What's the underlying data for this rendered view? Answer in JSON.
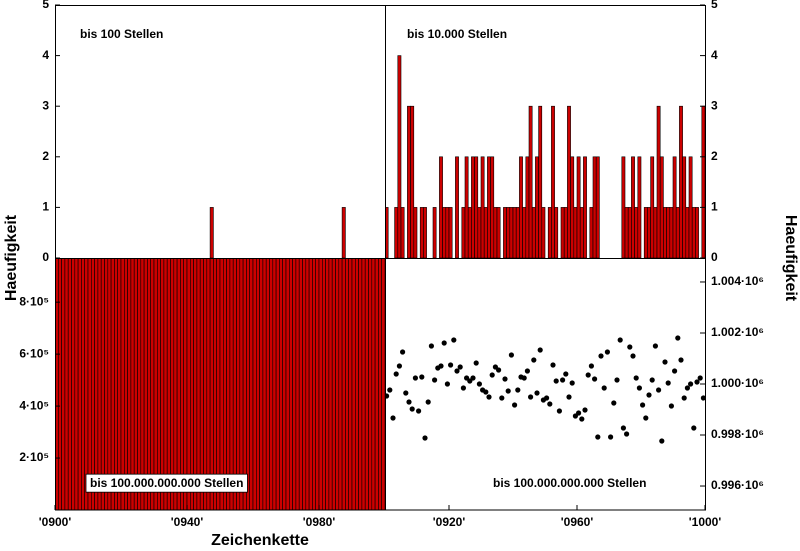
{
  "chart_data": [
    {
      "type": "bar",
      "title": "bis 100 Stellen",
      "color": "#cc0000",
      "y_axis": "left",
      "x": [
        900,
        901,
        902,
        903,
        904,
        905,
        906,
        907,
        908,
        909,
        910,
        911,
        912,
        913,
        914,
        915,
        916,
        917,
        918,
        919,
        920,
        921,
        922,
        923,
        924,
        925,
        926,
        927,
        928,
        929,
        930,
        931,
        932,
        933,
        934,
        935,
        936,
        937,
        938,
        939,
        940,
        941,
        942,
        943,
        944,
        945,
        946,
        947,
        948,
        949,
        950,
        951,
        952,
        953,
        954,
        955,
        956,
        957,
        958,
        959,
        960,
        961,
        962,
        963,
        964,
        965,
        966,
        967,
        968,
        969,
        970,
        971,
        972,
        973,
        974,
        975,
        976,
        977,
        978,
        979,
        980,
        981,
        982,
        983,
        984,
        985,
        986,
        987,
        988,
        989,
        990,
        991,
        992,
        993,
        994,
        995,
        996,
        997,
        998,
        999
      ],
      "values": [
        0,
        0,
        0,
        0,
        0,
        0,
        0,
        0,
        0,
        0,
        0,
        0,
        0,
        0,
        0,
        0,
        0,
        0,
        0,
        0,
        0,
        0,
        0,
        0,
        0,
        0,
        0,
        0,
        0,
        0,
        0,
        0,
        0,
        0,
        0,
        0,
        0,
        0,
        0,
        0,
        0,
        0,
        0,
        0,
        0,
        0,
        0,
        1,
        0,
        0,
        0,
        0,
        0,
        0,
        0,
        0,
        0,
        0,
        0,
        0,
        0,
        0,
        0,
        0,
        0,
        0,
        0,
        0,
        0,
        0,
        0,
        0,
        0,
        0,
        0,
        0,
        0,
        0,
        0,
        0,
        0,
        0,
        0,
        0,
        0,
        0,
        0,
        1,
        0,
        0,
        0,
        0,
        0,
        0,
        0,
        0,
        0,
        0,
        0,
        0
      ],
      "xlim": [
        900,
        1000
      ],
      "ylim": [
        0,
        5
      ],
      "yticks": [
        0,
        1,
        2,
        3,
        4,
        5
      ],
      "ylabel": "Haeufigkeit"
    },
    {
      "type": "bar",
      "title": "bis 10.000 Stellen",
      "color": "#cc0000",
      "y_axis": "right",
      "x": [
        900,
        901,
        902,
        903,
        904,
        905,
        906,
        907,
        908,
        909,
        910,
        911,
        912,
        913,
        914,
        915,
        916,
        917,
        918,
        919,
        920,
        921,
        922,
        923,
        924,
        925,
        926,
        927,
        928,
        929,
        930,
        931,
        932,
        933,
        934,
        935,
        936,
        937,
        938,
        939,
        940,
        941,
        942,
        943,
        944,
        945,
        946,
        947,
        948,
        949,
        950,
        951,
        952,
        953,
        954,
        955,
        956,
        957,
        958,
        959,
        960,
        961,
        962,
        963,
        964,
        965,
        966,
        967,
        968,
        969,
        970,
        971,
        972,
        973,
        974,
        975,
        976,
        977,
        978,
        979,
        980,
        981,
        982,
        983,
        984,
        985,
        986,
        987,
        988,
        989,
        990,
        991,
        992,
        993,
        994,
        995,
        996,
        997,
        998,
        999
      ],
      "values": [
        1,
        0,
        0,
        1,
        4,
        1,
        0,
        3,
        3,
        1,
        0,
        1,
        1,
        0,
        0,
        1,
        0,
        2,
        1,
        1,
        1,
        0,
        2,
        0,
        1,
        2,
        1,
        2,
        2,
        1,
        2,
        1,
        2,
        2,
        1,
        1,
        0,
        1,
        1,
        1,
        1,
        1,
        2,
        1,
        2,
        3,
        1,
        2,
        3,
        1,
        0,
        1,
        3,
        1,
        0,
        1,
        1,
        3,
        2,
        1,
        2,
        1,
        2,
        0,
        1,
        2,
        2,
        0,
        0,
        0,
        0,
        0,
        0,
        0,
        2,
        1,
        1,
        2,
        1,
        2,
        0,
        1,
        1,
        2,
        1,
        3,
        2,
        1,
        1,
        1,
        2,
        1,
        3,
        2,
        1,
        2,
        1,
        1,
        0,
        3
      ],
      "xlim": [
        900,
        1000
      ],
      "ylim": [
        0,
        5
      ],
      "yticks": [
        0,
        1,
        2,
        3,
        4,
        5
      ],
      "ylabel": "Haeufigkeit"
    },
    {
      "type": "bar",
      "title": "bis 100.000.000.000 Stellen",
      "color": "#cc0000",
      "y_axis": "left",
      "label_box": true,
      "x": [
        900,
        901,
        902,
        903,
        904,
        905,
        906,
        907,
        908,
        909,
        910,
        911,
        912,
        913,
        914,
        915,
        916,
        917,
        918,
        919,
        920,
        921,
        922,
        923,
        924,
        925,
        926,
        927,
        928,
        929,
        930,
        931,
        932,
        933,
        934,
        935,
        936,
        937,
        938,
        939,
        940,
        941,
        942,
        943,
        944,
        945,
        946,
        947,
        948,
        949,
        950,
        951,
        952,
        953,
        954,
        955,
        956,
        957,
        958,
        959,
        960,
        961,
        962,
        963,
        964,
        965,
        966,
        967,
        968,
        969,
        970,
        971,
        972,
        973,
        974,
        975,
        976,
        977,
        978,
        979,
        980,
        981,
        982,
        983,
        984,
        985,
        986,
        987,
        988,
        989,
        990,
        991,
        992,
        993,
        994,
        995,
        996,
        997,
        998,
        999
      ],
      "values": [
        999530,
        999765,
        998667,
        1000392,
        1000706,
        1001255,
        999647,
        999294,
        999020,
        1000235,
        998942,
        1000274,
        997883,
        999294,
        1001490,
        1000157,
        1000627,
        1000706,
        1001607,
        1000000,
        1000745,
        1001725,
        1000510,
        1000666,
        999843,
        1000235,
        1000118,
        1000235,
        1000823,
        1000000,
        999765,
        999686,
        999490,
        1000353,
        1000666,
        1000549,
        999451,
        1000196,
        999726,
        1001137,
        999177,
        999765,
        1000274,
        1000235,
        1000510,
        999490,
        1000941,
        999647,
        1001333,
        999373,
        999451,
        999216,
        1000745,
        1000118,
        998942,
        1000157,
        1000392,
        999490,
        1000039,
        998746,
        998863,
        998628,
        998981,
        1000353,
        1000706,
        1000196,
        997922,
        1001098,
        999843,
        1001255,
        997922,
        999255,
        1000157,
        1001725,
        998275,
        998040,
        1001450,
        1001098,
        1000235,
        999843,
        999177,
        998667,
        999569,
        1000157,
        1001490,
        999765,
        997766,
        1000862,
        1000039,
        999138,
        1000510,
        1001803,
        1000941,
        999451,
        999843,
        1000000,
        998275,
        1000078,
        1000235,
        999451
      ],
      "xlim": [
        900,
        1000
      ],
      "ylim": [
        0,
        970000
      ],
      "yticks": [
        {
          "value": 200000,
          "label": "2·10⁵"
        },
        {
          "value": 400000,
          "label": "4·10⁵"
        },
        {
          "value": 600000,
          "label": "6·10⁵"
        },
        {
          "value": 800000,
          "label": "8·10⁵"
        }
      ],
      "xticks": [
        {
          "value": 900,
          "label": "'0900'"
        },
        {
          "value": 940,
          "label": "'0940'"
        },
        {
          "value": 980,
          "label": "'0980'"
        }
      ],
      "xlabel": "Zeichenkette"
    },
    {
      "type": "scatter",
      "title": "bis 100.000.000.000 Stellen",
      "color": "#000000",
      "y_axis": "right",
      "x": [
        900,
        901,
        902,
        903,
        904,
        905,
        906,
        907,
        908,
        909,
        910,
        911,
        912,
        913,
        914,
        915,
        916,
        917,
        918,
        919,
        920,
        921,
        922,
        923,
        924,
        925,
        926,
        927,
        928,
        929,
        930,
        931,
        932,
        933,
        934,
        935,
        936,
        937,
        938,
        939,
        940,
        941,
        942,
        943,
        944,
        945,
        946,
        947,
        948,
        949,
        950,
        951,
        952,
        953,
        954,
        955,
        956,
        957,
        958,
        959,
        960,
        961,
        962,
        963,
        964,
        965,
        966,
        967,
        968,
        969,
        970,
        971,
        972,
        973,
        974,
        975,
        976,
        977,
        978,
        979,
        980,
        981,
        982,
        983,
        984,
        985,
        986,
        987,
        988,
        989,
        990,
        991,
        992,
        993,
        994,
        995,
        996,
        997,
        998,
        999
      ],
      "values": [
        999530,
        999765,
        998667,
        1000392,
        1000706,
        1001255,
        999647,
        999294,
        999020,
        1000235,
        998942,
        1000274,
        997883,
        999294,
        1001490,
        1000157,
        1000627,
        1000706,
        1001607,
        1000000,
        1000745,
        1001725,
        1000510,
        1000666,
        999843,
        1000235,
        1000118,
        1000235,
        1000823,
        1000000,
        999765,
        999686,
        999490,
        1000353,
        1000666,
        1000549,
        999451,
        1000196,
        999726,
        1001137,
        999177,
        999765,
        1000274,
        1000235,
        1000510,
        999490,
        1000941,
        999647,
        1001333,
        999373,
        999451,
        999216,
        1000745,
        1000118,
        998942,
        1000157,
        1000392,
        999490,
        1000039,
        998746,
        998863,
        998628,
        998981,
        1000353,
        1000706,
        1000196,
        997922,
        1001098,
        999843,
        1001255,
        997922,
        999255,
        1000157,
        1001725,
        998275,
        998040,
        1001450,
        1001098,
        1000235,
        999843,
        999177,
        998667,
        999569,
        1000157,
        1001490,
        999765,
        997766,
        1000862,
        1000039,
        999138,
        1000510,
        1001803,
        1000941,
        999451,
        999843,
        1000000,
        998275,
        1000078,
        1000235,
        999451
      ],
      "xlim": [
        900,
        1000
      ],
      "ylim": [
        995060,
        1004940
      ],
      "yticks": [
        {
          "value": 996000,
          "label": "0.996·10⁶"
        },
        {
          "value": 998000,
          "label": "0.998·10⁶"
        },
        {
          "value": 1000000,
          "label": "1.000·10⁶"
        },
        {
          "value": 1002000,
          "label": "1.002·10⁶"
        },
        {
          "value": 1004000,
          "label": "1.004·10⁶"
        }
      ],
      "xticks": [
        {
          "value": 920,
          "label": "'0920'"
        },
        {
          "value": 960,
          "label": "'0960'"
        },
        {
          "value": 1000,
          "label": "'1000'"
        }
      ]
    }
  ]
}
